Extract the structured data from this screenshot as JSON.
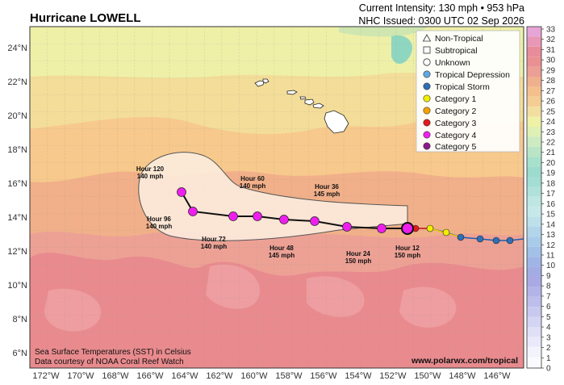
{
  "header": {
    "title": "Hurricane LOWELL",
    "intensity": "Current Intensity: 130 mph • 953 hPa",
    "issued": "NHC Issued: 0300 UTC 02 Sep 2026"
  },
  "axes": {
    "lon_labels": [
      "172°W",
      "170°W",
      "168°W",
      "166°W",
      "164°W",
      "162°W",
      "160°W",
      "158°W",
      "156°W",
      "154°W",
      "152°W",
      "150°W",
      "148°W",
      "146°W"
    ],
    "lat_labels": [
      "24°N",
      "22°N",
      "20°N",
      "18°N",
      "16°N",
      "14°N",
      "12°N",
      "10°N",
      "8°N",
      "6°N"
    ]
  },
  "colorbar": {
    "ticks": [
      "33",
      "32",
      "31",
      "30",
      "29",
      "28",
      "27",
      "26",
      "25",
      "24",
      "23",
      "22",
      "21",
      "20",
      "19",
      "18",
      "17",
      "16",
      "15",
      "14",
      "13",
      "12",
      "11",
      "10",
      "9",
      "8",
      "7",
      "6",
      "5",
      "4",
      "3",
      "2",
      "1",
      "0"
    ]
  },
  "legend": {
    "items": [
      {
        "label": "Non-Tropical",
        "marker": "triangle-icon",
        "color": "#ffffff"
      },
      {
        "label": "Subtropical",
        "marker": "square-icon",
        "color": "#ffffff"
      },
      {
        "label": "Unknown",
        "marker": "circle-icon",
        "color": "#ffffff"
      },
      {
        "label": "Tropical Depression",
        "marker": "circle-icon",
        "color": "#5fa8e0"
      },
      {
        "label": "Tropical Storm",
        "marker": "circle-icon",
        "color": "#2f6fb6"
      },
      {
        "label": "Category 1",
        "marker": "circle-icon",
        "color": "#f2ee00"
      },
      {
        "label": "Category 2",
        "marker": "circle-icon",
        "color": "#f5a300"
      },
      {
        "label": "Category 3",
        "marker": "circle-icon",
        "color": "#e31a1c"
      },
      {
        "label": "Category 4",
        "marker": "circle-icon",
        "color": "#ee1fee"
      },
      {
        "label": "Category 5",
        "marker": "circle-icon",
        "color": "#8a1a8a"
      }
    ]
  },
  "forecast_labels": [
    {
      "hour": "Hour 120",
      "speed": "140 mph"
    },
    {
      "hour": "Hour 96",
      "speed": "140 mph"
    },
    {
      "hour": "Hour 72",
      "speed": "140 mph"
    },
    {
      "hour": "Hour 60",
      "speed": "140 mph"
    },
    {
      "hour": "Hour 48",
      "speed": "145 mph"
    },
    {
      "hour": "Hour 36",
      "speed": "145 mph"
    },
    {
      "hour": "Hour 24",
      "speed": "150 mph"
    },
    {
      "hour": "Hour 12",
      "speed": "150 mph"
    }
  ],
  "footer": {
    "credit_line1": "Sea Surface Temperatures (SST) in Celsius",
    "credit_line2": "Data courtesy of NOAA Coral Reef Watch",
    "url": "www.polarwx.com/tropical"
  },
  "colors": {
    "cat4": "#ee1fee",
    "cat3": "#e31a1c",
    "cat1": "#f2ee00",
    "ts": "#2f6fb6",
    "cone": "#fdeee2"
  }
}
